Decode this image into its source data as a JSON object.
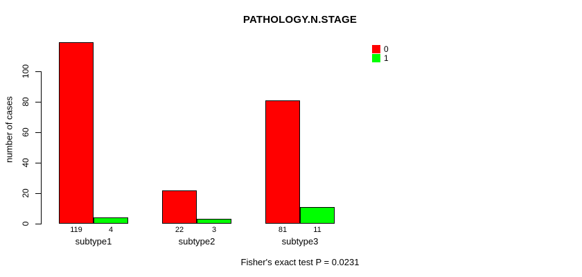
{
  "chart_data": {
    "type": "bar",
    "title": "PATHOLOGY.N.STAGE",
    "ylabel": "number of cases",
    "xlabel": "",
    "categories": [
      "subtype1",
      "subtype2",
      "subtype3"
    ],
    "series": [
      {
        "name": "0",
        "color": "#ff0000",
        "values": [
          119,
          22,
          81
        ]
      },
      {
        "name": "1",
        "color": "#00ff00",
        "values": [
          4,
          3,
          11
        ]
      }
    ],
    "yticks": [
      0,
      20,
      40,
      60,
      80,
      100
    ],
    "ylim": [
      0,
      120
    ],
    "grid": false,
    "legend_position": "top-right",
    "bar_value_labels_shown": true,
    "annotation": "Fisher's exact test P = 0.0231"
  }
}
